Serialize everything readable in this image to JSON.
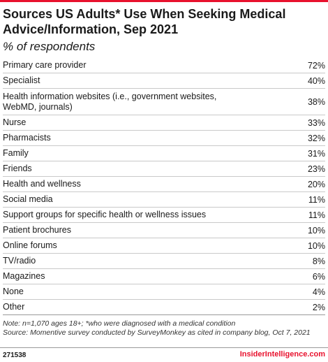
{
  "chart_data": {
    "type": "table",
    "title": "Sources US Adults* Use When Seeking Medical Advice/Information, Sep 2021",
    "subtitle": "% of respondents",
    "categories": [
      "Primary care provider",
      "Specialist",
      "Health information websites (i.e., government websites, WebMD, journals)",
      "Nurse",
      "Pharmacists",
      "Family",
      "Friends",
      "Health and wellness",
      "Social media",
      "Support groups for specific health or wellness issues",
      "Patient brochures",
      "Online forums",
      "TV/radio",
      "Magazines",
      "None",
      "Other"
    ],
    "values": [
      72,
      40,
      38,
      33,
      32,
      31,
      23,
      20,
      11,
      11,
      10,
      10,
      8,
      6,
      4,
      2
    ],
    "value_labels": [
      "72%",
      "40%",
      "38%",
      "33%",
      "32%",
      "31%",
      "23%",
      "20%",
      "11%",
      "11%",
      "10%",
      "10%",
      "8%",
      "6%",
      "4%",
      "2%"
    ]
  },
  "note": "Note: n=1,070 ages 18+; *who were diagnosed with a medical condition",
  "source": "Source: Momentive survey conducted by SurveyMonkey as cited in company blog, Oct 7, 2021",
  "chart_id": "271538",
  "brand": "InsiderIntelligence.com",
  "colors": {
    "accent": "#e8112d",
    "text": "#1a1a1a",
    "rule": "#c9c9c9"
  }
}
